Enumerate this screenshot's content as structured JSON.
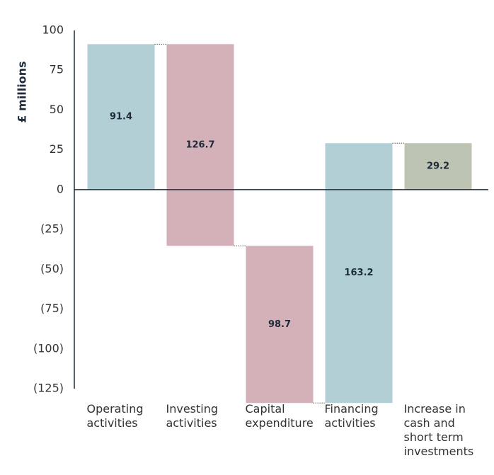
{
  "chart_data": {
    "type": "waterfall",
    "y_label": "£ millions",
    "categories": [
      "Operating activities",
      "Investing activities",
      "Capital expenditure",
      "Financing activities",
      "Increase in cash and short term investments"
    ],
    "values": [
      91.4,
      -126.7,
      -98.7,
      163.2,
      29.2
    ],
    "value_labels": [
      "91.4",
      "126.7",
      "98.7",
      "163.2",
      "29.2"
    ],
    "measure": [
      "relative",
      "relative",
      "relative",
      "relative",
      "total"
    ],
    "colors": [
      "#b3cfd6",
      "#d4b0b9",
      "#d4b0b9",
      "#b3cfd6",
      "#bdc4b3"
    ],
    "ylim": [
      -125,
      100
    ],
    "yticks": [
      100,
      75,
      50,
      25,
      0,
      {
        "value": -25,
        "label": "(25)"
      },
      {
        "value": -50,
        "label": "(50)"
      },
      {
        "value": -75,
        "label": "(75)"
      },
      {
        "value": -100,
        "label": "(100)"
      },
      {
        "value": -125,
        "label": "(125)"
      }
    ]
  }
}
